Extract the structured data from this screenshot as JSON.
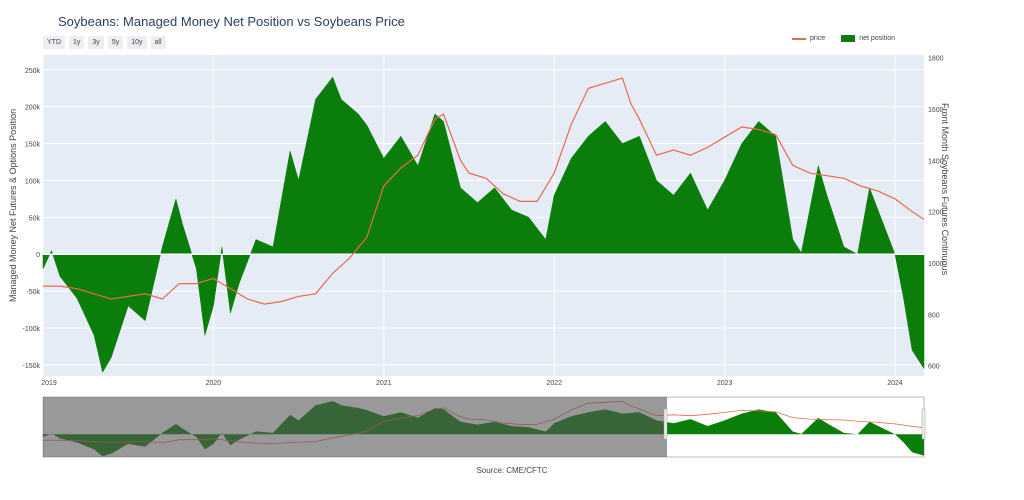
{
  "chart_data": {
    "type": "area",
    "title": "Soybeans: Managed Money Net Position vs Soybeans Price",
    "range_buttons": [
      "YTD",
      "1y",
      "3y",
      "5y",
      "10y",
      "all"
    ],
    "ylabel_left": "Managed Money Net Futures & Options Position",
    "ylabel_right": "Front Month Soybeans Futures Continuous",
    "source": "Source: CME/CFTC",
    "x_ticks": [
      "2019",
      "2020",
      "2021",
      "2022",
      "2023",
      "2024"
    ],
    "y_left_ticks": [
      "250k",
      "200k",
      "150k",
      "100k",
      "50k",
      "0",
      "-50k",
      "-100k",
      "-150k"
    ],
    "y_right_ticks": [
      "1800",
      "1600",
      "1400",
      "1200",
      "1000",
      "800",
      "600"
    ],
    "ylim_left": [
      -165000,
      270000
    ],
    "ylim_right": [
      560,
      1810
    ],
    "xlim": [
      2019.0,
      2024.17
    ],
    "colors": {
      "price": "#e8694f",
      "net_position": "#0a7d0a",
      "plot_bg": "#e5ecf6"
    },
    "series": [
      {
        "name": "price",
        "axis": "right",
        "x": [
          2019.0,
          2019.1,
          2019.2,
          2019.3,
          2019.4,
          2019.5,
          2019.6,
          2019.7,
          2019.8,
          2019.9,
          2020.0,
          2020.1,
          2020.2,
          2020.3,
          2020.4,
          2020.5,
          2020.6,
          2020.7,
          2020.8,
          2020.9,
          2021.0,
          2021.1,
          2021.2,
          2021.3,
          2021.35,
          2021.45,
          2021.5,
          2021.6,
          2021.7,
          2021.8,
          2021.9,
          2022.0,
          2022.1,
          2022.2,
          2022.3,
          2022.4,
          2022.45,
          2022.5,
          2022.6,
          2022.7,
          2022.8,
          2022.9,
          2023.0,
          2023.1,
          2023.2,
          2023.3,
          2023.4,
          2023.5,
          2023.6,
          2023.7,
          2023.8,
          2023.9,
          2024.0,
          2024.1,
          2024.17
        ],
        "values": [
          910,
          910,
          900,
          880,
          860,
          870,
          880,
          860,
          920,
          920,
          940,
          900,
          860,
          840,
          850,
          870,
          880,
          960,
          1020,
          1100,
          1300,
          1370,
          1420,
          1560,
          1580,
          1400,
          1350,
          1330,
          1270,
          1240,
          1240,
          1350,
          1540,
          1680,
          1700,
          1720,
          1620,
          1560,
          1420,
          1440,
          1420,
          1450,
          1490,
          1530,
          1520,
          1500,
          1380,
          1350,
          1340,
          1330,
          1300,
          1280,
          1250,
          1200,
          1170
        ]
      },
      {
        "name": "net position",
        "axis": "left",
        "x": [
          2019.0,
          2019.05,
          2019.1,
          2019.2,
          2019.3,
          2019.35,
          2019.4,
          2019.5,
          2019.6,
          2019.7,
          2019.78,
          2019.82,
          2019.9,
          2019.95,
          2020.0,
          2020.05,
          2020.1,
          2020.15,
          2020.25,
          2020.35,
          2020.45,
          2020.5,
          2020.6,
          2020.7,
          2020.75,
          2020.85,
          2020.9,
          2021.0,
          2021.1,
          2021.2,
          2021.3,
          2021.35,
          2021.45,
          2021.55,
          2021.65,
          2021.75,
          2021.85,
          2021.95,
          2022.0,
          2022.1,
          2022.2,
          2022.3,
          2022.4,
          2022.5,
          2022.6,
          2022.7,
          2022.8,
          2022.9,
          2023.0,
          2023.1,
          2023.2,
          2023.3,
          2023.4,
          2023.45,
          2023.55,
          2023.6,
          2023.7,
          2023.78,
          2023.85,
          2023.95,
          2024.0,
          2024.05,
          2024.1,
          2024.17
        ],
        "values": [
          -20000,
          5000,
          -30000,
          -60000,
          -110000,
          -160000,
          -140000,
          -70000,
          -90000,
          10000,
          75000,
          40000,
          -20000,
          -110000,
          -70000,
          10000,
          -80000,
          -40000,
          20000,
          10000,
          140000,
          100000,
          210000,
          240000,
          210000,
          190000,
          175000,
          130000,
          160000,
          120000,
          190000,
          180000,
          90000,
          70000,
          90000,
          60000,
          50000,
          20000,
          80000,
          130000,
          160000,
          180000,
          150000,
          160000,
          100000,
          80000,
          110000,
          60000,
          100000,
          150000,
          180000,
          160000,
          20000,
          2000,
          120000,
          80000,
          10000,
          0,
          90000,
          30000,
          0,
          -60000,
          -130000,
          -155000
        ]
      }
    ]
  }
}
